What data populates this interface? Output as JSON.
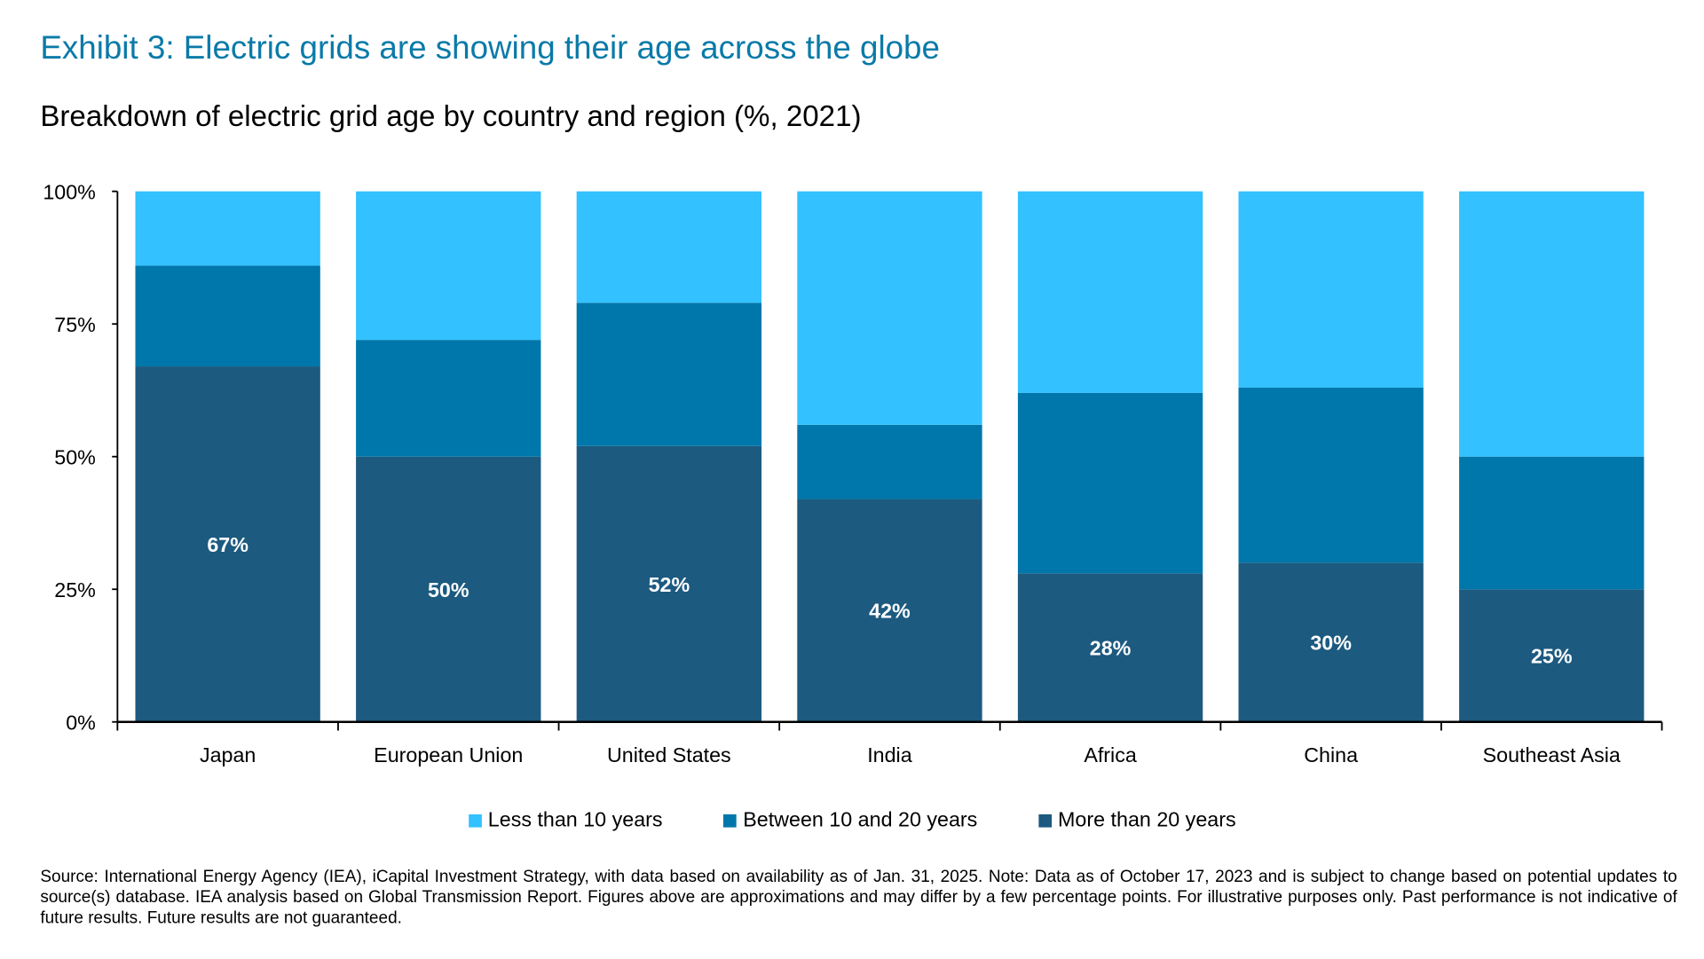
{
  "title": "Exhibit 3: Electric grids are showing their age across the globe",
  "subtitle": "Breakdown of electric grid age by country and region (%, 2021)",
  "chart_data": {
    "type": "bar",
    "stacked": true,
    "categories": [
      "Japan",
      "European Union",
      "United States",
      "India",
      "Africa",
      "China",
      "Southeast Asia"
    ],
    "series": [
      {
        "name": "More than 20 years",
        "values": [
          67,
          50,
          52,
          42,
          28,
          30,
          25
        ],
        "color": "#1c5a80"
      },
      {
        "name": "Between 10 and 20 years",
        "values": [
          19,
          22,
          27,
          14,
          34,
          33,
          25
        ],
        "color": "#0077aa"
      },
      {
        "name": "Less than 10 years",
        "values": [
          14,
          28,
          21,
          44,
          38,
          37,
          50
        ],
        "color": "#33c1ff"
      }
    ],
    "data_labels": [
      "67%",
      "50%",
      "52%",
      "42%",
      "28%",
      "30%",
      "25%"
    ],
    "yticks": [
      "0%",
      "25%",
      "50%",
      "75%",
      "100%"
    ],
    "ylim": [
      0,
      100
    ],
    "grid": false,
    "legend_order": [
      "Less than 10 years",
      "Between 10 and 20 years",
      "More than 20 years"
    ],
    "legend_position": "bottom"
  },
  "footnote": "Source: International Energy Agency (IEA), iCapital Investment Strategy, with data based on availability as of Jan. 31, 2025. Note: Data as of October 17, 2023 and is subject to change based on potential updates to source(s) database. IEA analysis based on Global Transmission Report. Figures above are approximations and may differ by a few percentage points. For illustrative purposes only. Past performance is not indicative of future results. Future results are not guaranteed."
}
